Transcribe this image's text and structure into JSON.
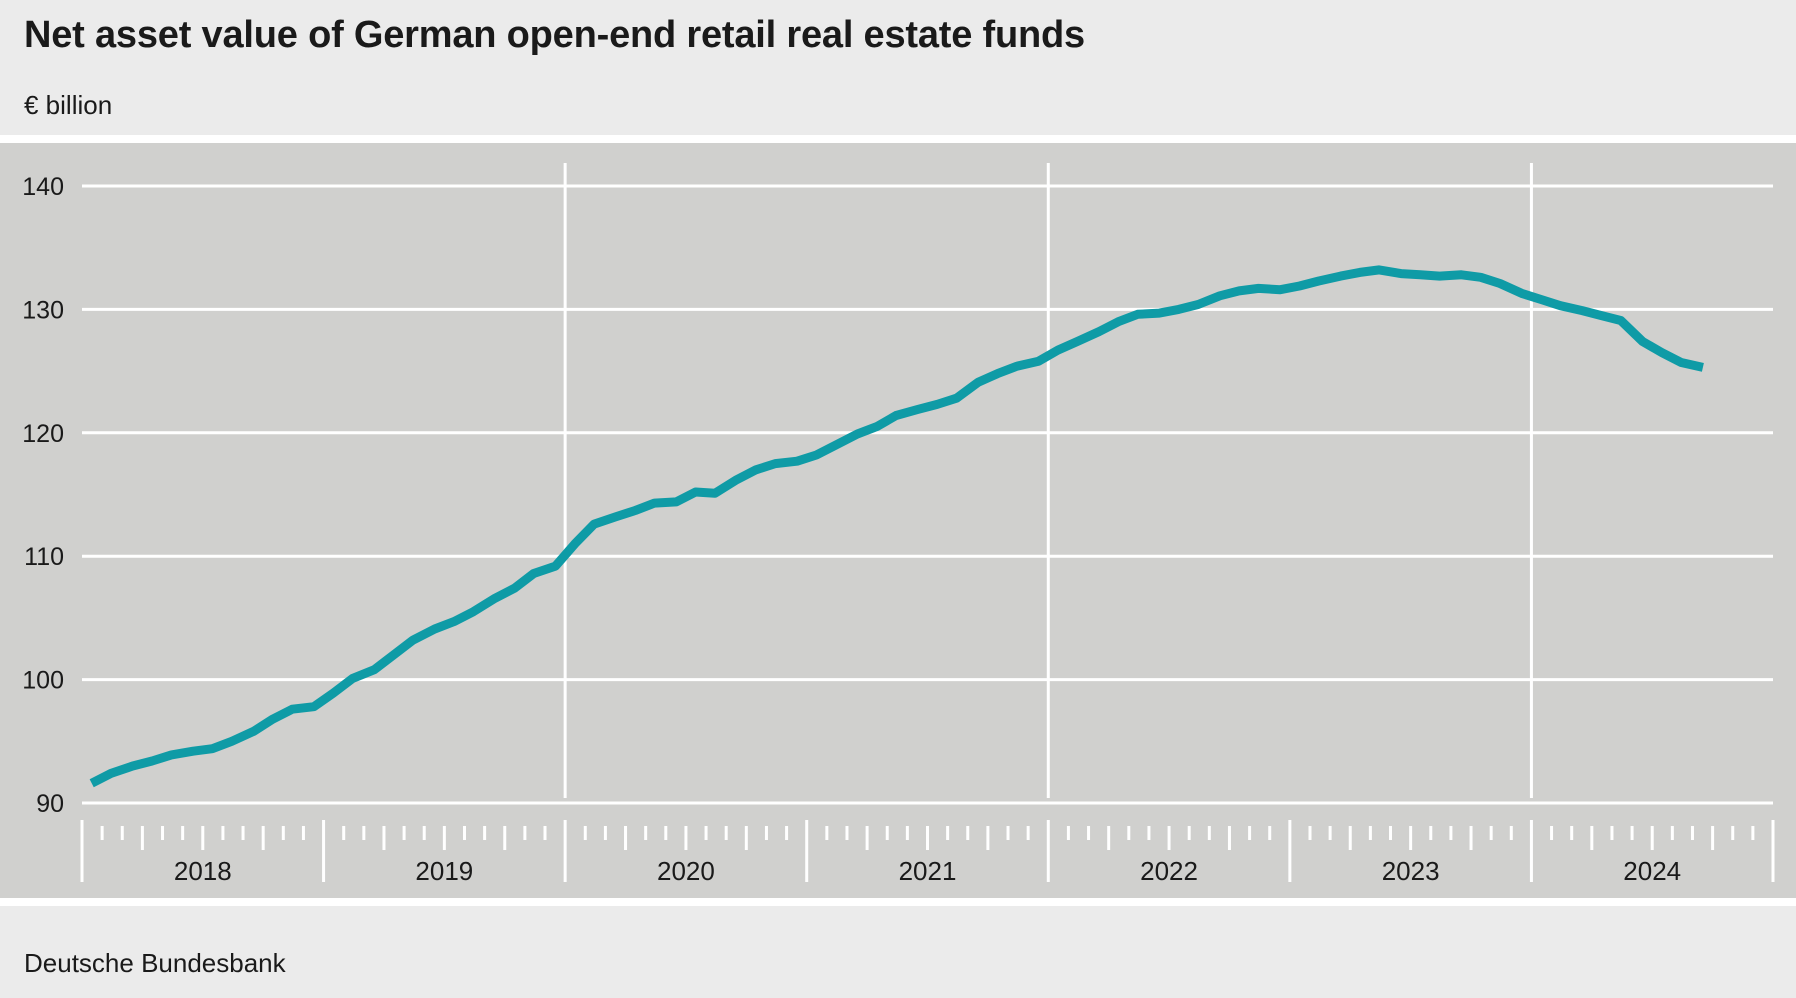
{
  "header": {
    "title": "Net asset value of German open-end retail real estate funds",
    "unit": "€ billion"
  },
  "footer": {
    "source": "Deutsche Bundesbank"
  },
  "colors": {
    "line": "#0f9ba6",
    "plot_bg": "#d0d0ce",
    "page_bg": "#ebebeb",
    "grid": "#ffffff"
  },
  "chart_data": {
    "type": "line",
    "title": "Net asset value of German open-end retail real estate funds",
    "ylabel": "€ billion",
    "ylim": [
      90,
      140
    ],
    "yticks": [
      90,
      100,
      110,
      120,
      130,
      140
    ],
    "xlim": [
      2018.0,
      2025.0
    ],
    "year_labels": [
      "2018",
      "2019",
      "2020",
      "2021",
      "2022",
      "2023",
      "2024"
    ],
    "grid": true,
    "series": [
      {
        "x": [
          2018.04,
          2018.12,
          2018.21,
          2018.29,
          2018.37,
          2018.46,
          2018.54,
          2018.62,
          2018.71,
          2018.79,
          2018.87,
          2018.96,
          2019.04,
          2019.12,
          2019.21,
          2019.29,
          2019.37,
          2019.46,
          2019.54,
          2019.62,
          2019.71,
          2019.79,
          2019.87,
          2019.96,
          2020.04,
          2020.12,
          2020.21,
          2020.29,
          2020.37,
          2020.46,
          2020.54,
          2020.62,
          2020.71,
          2020.79,
          2020.87,
          2020.96,
          2021.04,
          2021.12,
          2021.21,
          2021.29,
          2021.37,
          2021.46,
          2021.54,
          2021.62,
          2021.71,
          2021.79,
          2021.87,
          2021.96,
          2022.04,
          2022.12,
          2022.21,
          2022.29,
          2022.37,
          2022.46,
          2022.54,
          2022.62,
          2022.71,
          2022.79,
          2022.87,
          2022.96,
          2023.04,
          2023.12,
          2023.21,
          2023.29,
          2023.37,
          2023.46,
          2023.54,
          2023.62,
          2023.71,
          2023.79,
          2023.87,
          2023.96,
          2024.04,
          2024.12,
          2024.21,
          2024.29,
          2024.37,
          2024.46,
          2024.54,
          2024.62,
          2024.71
        ],
        "values": [
          91.6,
          92.4,
          93.0,
          93.4,
          93.9,
          94.2,
          94.4,
          95.0,
          95.8,
          96.8,
          97.6,
          97.8,
          98.9,
          100.1,
          100.8,
          102.0,
          103.2,
          104.1,
          104.7,
          105.5,
          106.6,
          107.4,
          108.6,
          109.2,
          111.0,
          112.6,
          113.2,
          113.7,
          114.3,
          114.4,
          115.2,
          115.1,
          116.2,
          117.0,
          117.5,
          117.7,
          118.2,
          119.0,
          119.9,
          120.5,
          121.4,
          121.9,
          122.3,
          122.8,
          124.1,
          124.8,
          125.4,
          125.8,
          126.7,
          127.4,
          128.2,
          129.0,
          129.6,
          129.7,
          130.0,
          130.4,
          131.1,
          131.5,
          131.7,
          131.6,
          131.9,
          132.3,
          132.7,
          133.0,
          133.2,
          132.9,
          132.8,
          132.7,
          132.8,
          132.6,
          132.1,
          131.3,
          130.8,
          130.3,
          129.9,
          129.5,
          129.1,
          127.4,
          126.5,
          125.7,
          125.3
        ]
      }
    ]
  }
}
